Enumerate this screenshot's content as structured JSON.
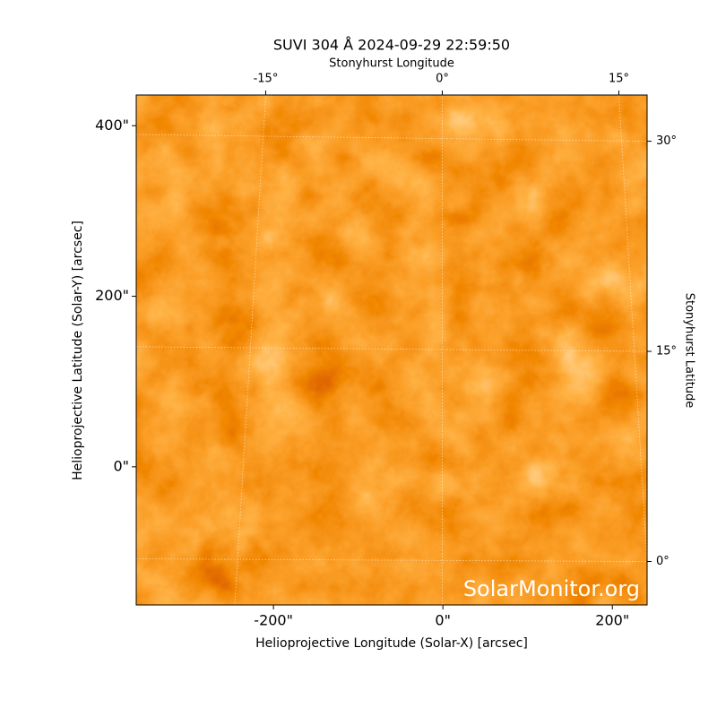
{
  "chart_data": {
    "type": "image",
    "title": "SUVI 304 Å 2024-09-29 22:59:50",
    "xlabel": "Helioprojective Longitude (Solar-X) [arcsec]",
    "ylabel": "Helioprojective Latitude (Solar-Y) [arcsec]",
    "x2label": "Stonyhurst Longitude",
    "y2label": "Stonyhurst Latitude",
    "watermark": "SolarMonitor.org",
    "xlim": [
      -362,
      241
    ],
    "ylim": [
      -162,
      436
    ],
    "xticks": [
      {
        "value": -200,
        "label": "-200\""
      },
      {
        "value": 0,
        "label": "0\""
      },
      {
        "value": 200,
        "label": "200\""
      }
    ],
    "yticks": [
      {
        "value": 0,
        "label": "0\""
      },
      {
        "value": 200,
        "label": "200\""
      },
      {
        "value": 400,
        "label": "400\""
      }
    ],
    "x2lim": [
      -26,
      17.4
    ],
    "y2lim": [
      -3.1,
      33.3
    ],
    "x2ticks": [
      {
        "value": -15,
        "label": "-15°"
      },
      {
        "value": 0,
        "label": "0°"
      },
      {
        "value": 15,
        "label": "15°"
      }
    ],
    "y2ticks": [
      {
        "value": 0,
        "label": "0°"
      },
      {
        "value": 15,
        "label": "15°"
      },
      {
        "value": 30,
        "label": "30°"
      }
    ],
    "grid": true
  }
}
